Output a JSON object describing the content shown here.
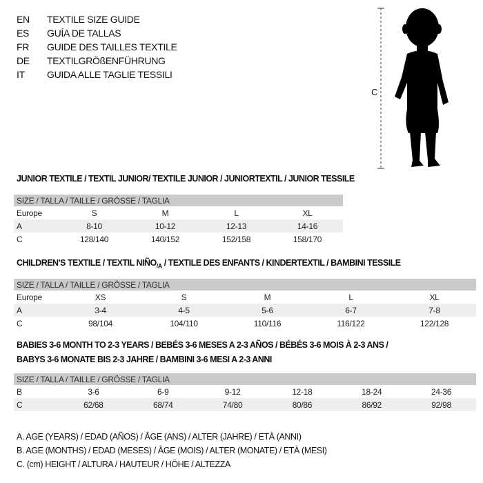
{
  "languages": [
    {
      "code": "EN",
      "text": "TEXTILE SIZE GUIDE"
    },
    {
      "code": "ES",
      "text": "GUÍA DE TALLAS"
    },
    {
      "code": "FR",
      "text": "GUIDE DES TAILLES TEXTILE"
    },
    {
      "code": "DE",
      "text": "TEXTILGRÖßENFÜHRUNG"
    },
    {
      "code": "IT",
      "text": "GUIDA ALLE TAGLIE TESSILI"
    }
  ],
  "figure": {
    "measure_label": "C"
  },
  "junior": {
    "title": "JUNIOR TEXTILE / TEXTIL JUNIOR/ TEXTILE JUNIOR / JUNIORTEXTIL / JUNIOR TESSILE",
    "header": "SIZE / TALLA / TAILLE / GRÖSSE / TAGLIA",
    "rows": [
      {
        "label": "Europe",
        "values": [
          "S",
          "M",
          "L",
          "XL"
        ]
      },
      {
        "label": "A",
        "values": [
          "8-10",
          "10-12",
          "12-13",
          "14-16"
        ]
      },
      {
        "label": "C",
        "values": [
          "128/140",
          "140/152",
          "152/158",
          "158/170"
        ]
      }
    ]
  },
  "children": {
    "title": "CHILDREN'S TEXTILE / TEXTIL NIÑO/A / TEXTILE DES ENFANTS / KINDERTEXTIL / BAMBINI TESSILE",
    "header": "SIZE / TALLA / TAILLE / GRÖSSE / TAGLIA",
    "rows": [
      {
        "label": "Europe",
        "values": [
          "XS",
          "S",
          "M",
          "L",
          "XL"
        ]
      },
      {
        "label": "A",
        "values": [
          "3-4",
          "4-5",
          "5-6",
          "6-7",
          "7-8"
        ]
      },
      {
        "label": "C",
        "values": [
          "98/104",
          "104/110",
          "110/116",
          "116/122",
          "122/128"
        ]
      }
    ]
  },
  "babies": {
    "title_line1": "BABIES 3-6 MONTH TO 2-3 YEARS / BEBÉS 3-6 MESES A 2-3 AÑOS / BÉBÉS 3-6 MOIS À 2-3 ANS /",
    "title_line2": "BABYS 3-6 MONATE BIS 2-3 JAHRE / BAMBINI 3-6 MESI A 2-3 ANNI",
    "header": "SIZE / TALLA / TAILLE / GRÖSSE / TAGLIA",
    "rows": [
      {
        "label": "B",
        "values": [
          "3-6",
          "6-9",
          "9-12",
          "12-18",
          "18-24",
          "24-36"
        ]
      },
      {
        "label": "C",
        "values": [
          "62/68",
          "68/74",
          "74/80",
          "80/86",
          "86/92",
          "92/98"
        ]
      }
    ]
  },
  "legend": [
    "A. AGE (YEARS) / EDAD (AÑOS) / ÂGE (ANS) / ALTER (JAHRE) / ETÀ (ANNI)",
    "B. AGE (MONTHS) / EDAD (MESES) / ÂGE (MOIS) / ALTER (MONATE) / ETÀ (MESI)",
    "C. (cm) HEIGHT / ALTURA / HAUTEUR / HÖHE / ALTEZZA"
  ]
}
